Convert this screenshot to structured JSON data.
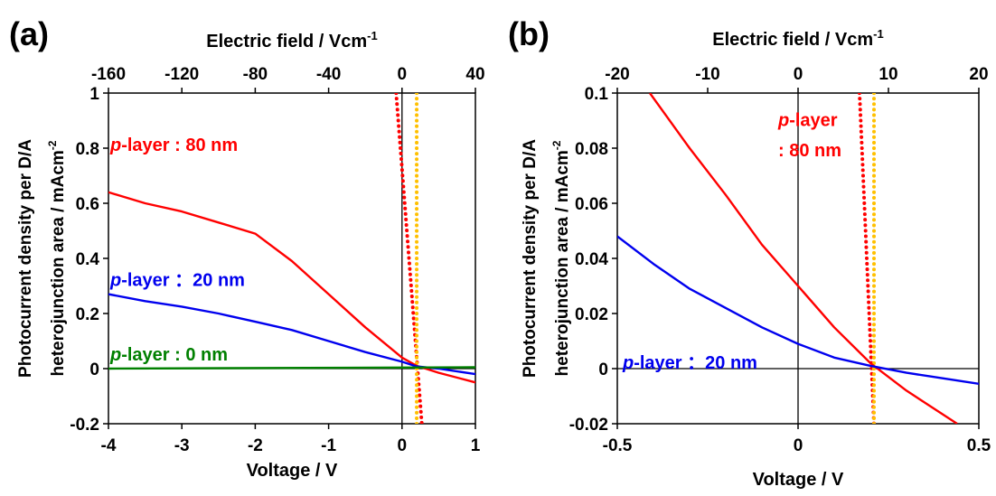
{
  "chart_data": [
    {
      "panel_label": "(a)",
      "type": "line",
      "xlabel": "Voltage / V",
      "ylabel_line1": "Photocurrent density per D/A",
      "ylabel_line2": "heterojunction area / mAcm",
      "ylabel_sup": "-2",
      "x2label": "Electric field / Vcm",
      "x2label_sup": "-1",
      "xlim": [
        -4,
        1
      ],
      "ylim": [
        -0.2,
        1
      ],
      "x2lim": [
        -160,
        40
      ],
      "xticks": [
        "-4",
        "-3",
        "-2",
        "-1",
        "0",
        "1"
      ],
      "yticks": [
        "-0.2",
        "0",
        "0.2",
        "0.4",
        "0.6",
        "0.8",
        "1"
      ],
      "x2ticks": [
        "-160",
        "-120",
        "-80",
        "-40",
        "0",
        "40"
      ],
      "series": [
        {
          "color": "#ff0000",
          "x": [
            -4,
            -3.5,
            -3,
            -2.5,
            -2,
            -1.5,
            -1,
            -0.5,
            0,
            0.2,
            0.5,
            1
          ],
          "y": [
            0.64,
            0.6,
            0.57,
            0.53,
            0.49,
            0.39,
            0.27,
            0.15,
            0.04,
            0.01,
            -0.015,
            -0.05
          ]
        },
        {
          "color": "#0000ee",
          "x": [
            -4,
            -3.5,
            -3,
            -2.5,
            -2,
            -1.5,
            -1,
            -0.5,
            0,
            0.2,
            0.5,
            1
          ],
          "y": [
            0.27,
            0.245,
            0.225,
            0.2,
            0.17,
            0.14,
            0.1,
            0.06,
            0.025,
            0.008,
            0.0,
            -0.02
          ]
        },
        {
          "color": "#008000",
          "x": [
            -4,
            1
          ],
          "y": [
            0.0,
            0.005
          ]
        }
      ],
      "dotted_lines": [
        {
          "color": "#ff0000",
          "x": [
            -0.08,
            0.27
          ],
          "y": [
            1.0,
            -0.2
          ]
        },
        {
          "color": "#ffc000",
          "x": [
            0.2,
            0.2
          ],
          "y": [
            1.0,
            -0.2
          ]
        }
      ],
      "annotations": [
        {
          "italic": "p",
          "text": "-layer : 80 nm",
          "color": "#ff0000",
          "x": -4,
          "y": 0.79
        },
        {
          "italic": "p",
          "text": "-layer ：20 nm",
          "color": "#0000ee",
          "x": -4,
          "y": 0.3
        },
        {
          "italic": "p",
          "text": "-layer : 0 nm",
          "color": "#008000",
          "x": -4,
          "y": 0.03
        }
      ]
    },
    {
      "panel_label": "(b)",
      "type": "line",
      "xlabel": "Voltage / V",
      "ylabel_line1": "Photocurrent density per D/A",
      "ylabel_line2": "heterojunction area / mAcm",
      "ylabel_sup": "-2",
      "x2label": "Electric field / Vcm",
      "x2label_sup": "-1",
      "xlim": [
        -0.5,
        0.5
      ],
      "ylim": [
        -0.02,
        0.1
      ],
      "x2lim": [
        -20,
        20
      ],
      "xticks": [
        "-0.5",
        "0",
        "0.5"
      ],
      "yticks": [
        "-0.02",
        "0",
        "0.02",
        "0.04",
        "0.06",
        "0.08",
        "0.1"
      ],
      "x2ticks": [
        "-20",
        "-10",
        "0",
        "10",
        "20"
      ],
      "series": [
        {
          "color": "#ff0000",
          "x": [
            -0.41,
            -0.3,
            -0.2,
            -0.1,
            0,
            0.1,
            0.2,
            0.3,
            0.44
          ],
          "y": [
            0.1,
            0.08,
            0.063,
            0.045,
            0.03,
            0.015,
            0.002,
            -0.008,
            -0.02
          ]
        },
        {
          "color": "#0000ee",
          "x": [
            -0.5,
            -0.4,
            -0.3,
            -0.2,
            -0.1,
            0,
            0.1,
            0.2,
            0.3,
            0.4,
            0.5
          ],
          "y": [
            0.048,
            0.038,
            0.029,
            0.022,
            0.015,
            0.009,
            0.004,
            0.001,
            -0.0015,
            -0.0035,
            -0.0055
          ]
        }
      ],
      "dotted_lines": [
        {
          "color": "#ff0000",
          "x": [
            0.17,
            0.21
          ],
          "y": [
            0.1,
            -0.02
          ]
        },
        {
          "color": "#ffc000",
          "x": [
            0.21,
            0.21
          ],
          "y": [
            0.1,
            -0.02
          ]
        }
      ],
      "annotations": [
        {
          "italic": "p",
          "text": "-layer",
          "color": "#ff0000",
          "x": -0.06,
          "y": 0.088
        },
        {
          "italic": "",
          "text": ": 80 nm",
          "color": "#ff0000",
          "x": -0.06,
          "y": 0.077
        },
        {
          "italic": "p",
          "text": "-layer ：20 nm",
          "color": "#0000ee",
          "x": -0.49,
          "y": 0.0
        }
      ]
    }
  ]
}
